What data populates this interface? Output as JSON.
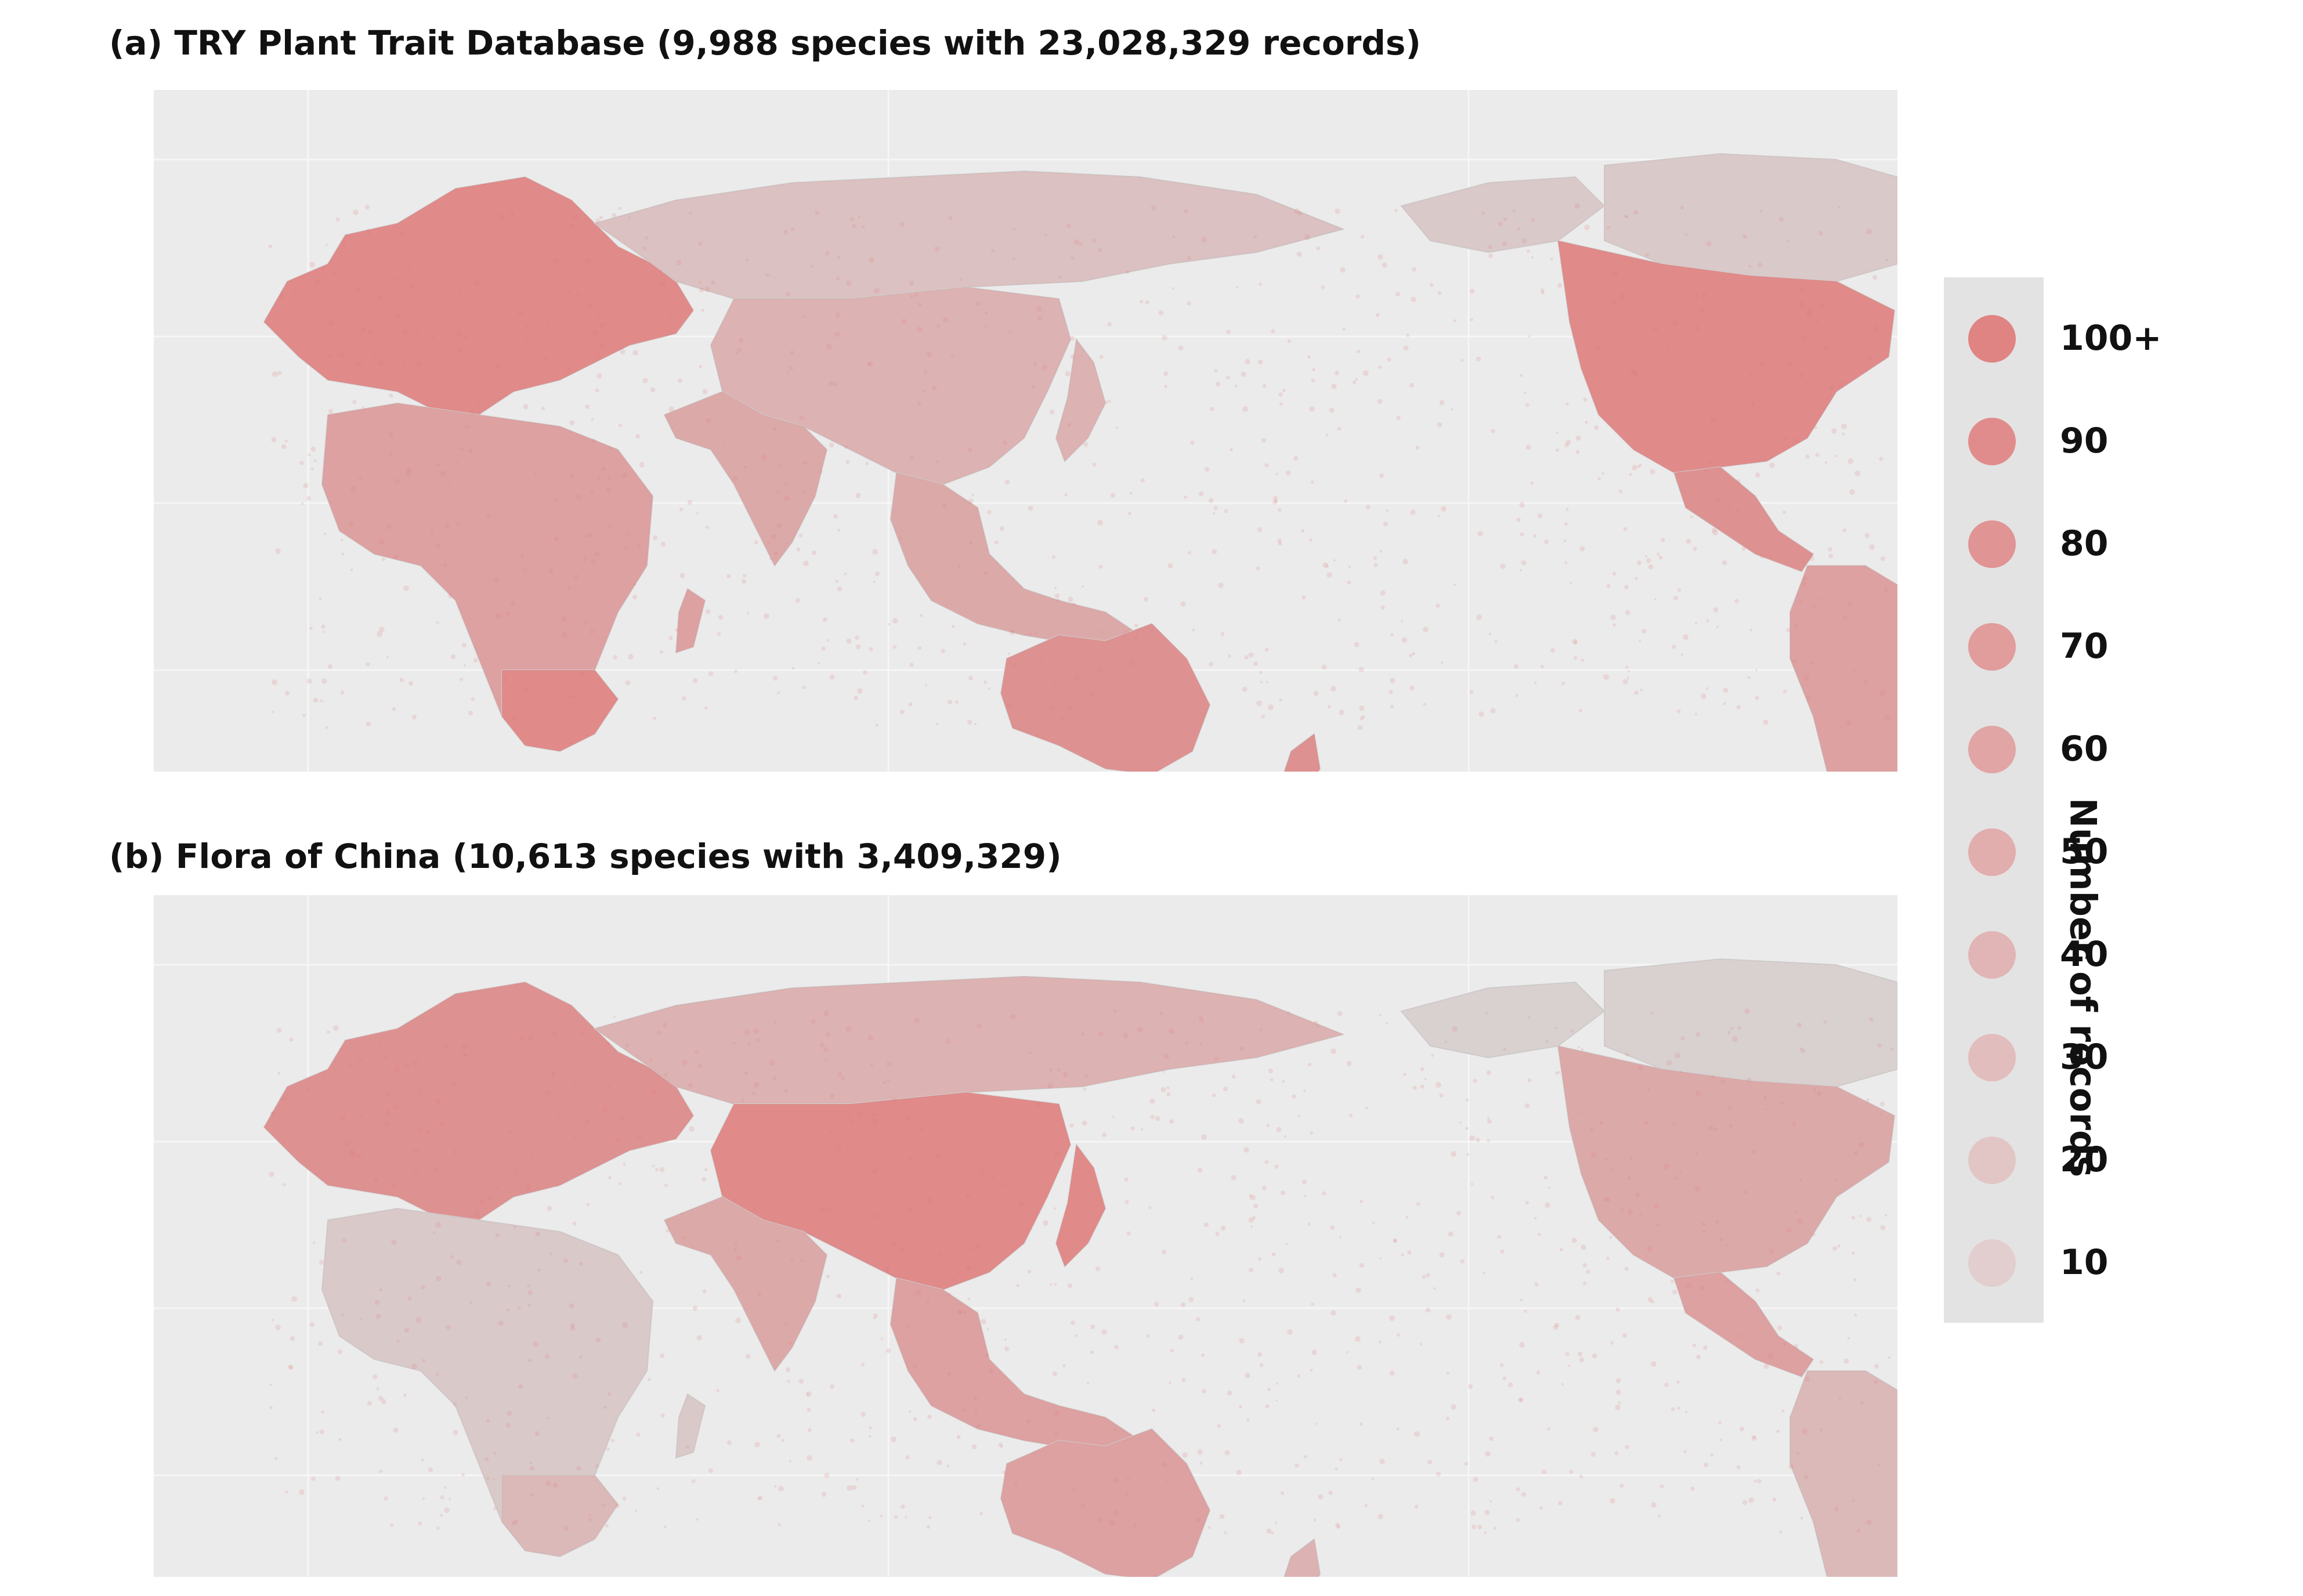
{
  "panels": [
    {
      "id": "a",
      "title": "(a) TRY Plant Trait Database (9,988 species with 23,028,329 records)",
      "region_intensity": {
        "europe": 100,
        "north_america": 100,
        "central_america": 90,
        "south_america": 70,
        "africa": 70,
        "south_africa": 100,
        "australia": 90,
        "new_zealand": 90,
        "east_asia": 50,
        "south_asia": 60,
        "southeast_asia": 60,
        "siberia": 30,
        "arctic_canada": 20
      }
    },
    {
      "id": "b",
      "title": "(b) Flora of China (10,613 species with 3,409,329)",
      "region_intensity": {
        "europe": 90,
        "north_america": 60,
        "central_america": 70,
        "south_america": 40,
        "africa": 20,
        "south_africa": 40,
        "australia": 70,
        "new_zealand": 50,
        "east_asia": 100,
        "south_asia": 60,
        "southeast_asia": 70,
        "siberia": 50,
        "arctic_canada": 10
      }
    }
  ],
  "legend": {
    "title": "Number of records",
    "items": [
      {
        "label": "100+",
        "value": 100
      },
      {
        "label": "90",
        "value": 90
      },
      {
        "label": "80",
        "value": 80
      },
      {
        "label": "70",
        "value": 70
      },
      {
        "label": "60",
        "value": 60
      },
      {
        "label": "50",
        "value": 50
      },
      {
        "label": "40",
        "value": 40
      },
      {
        "label": "30",
        "value": 30
      },
      {
        "label": "20",
        "value": 20
      },
      {
        "label": "10",
        "value": 10
      }
    ],
    "color": "#e07b7b"
  },
  "colors": {
    "land": "#d9d9d9",
    "ocean": "#ebebeb",
    "record": "#e07b7b",
    "legend_bg": "#e3e3e3"
  }
}
